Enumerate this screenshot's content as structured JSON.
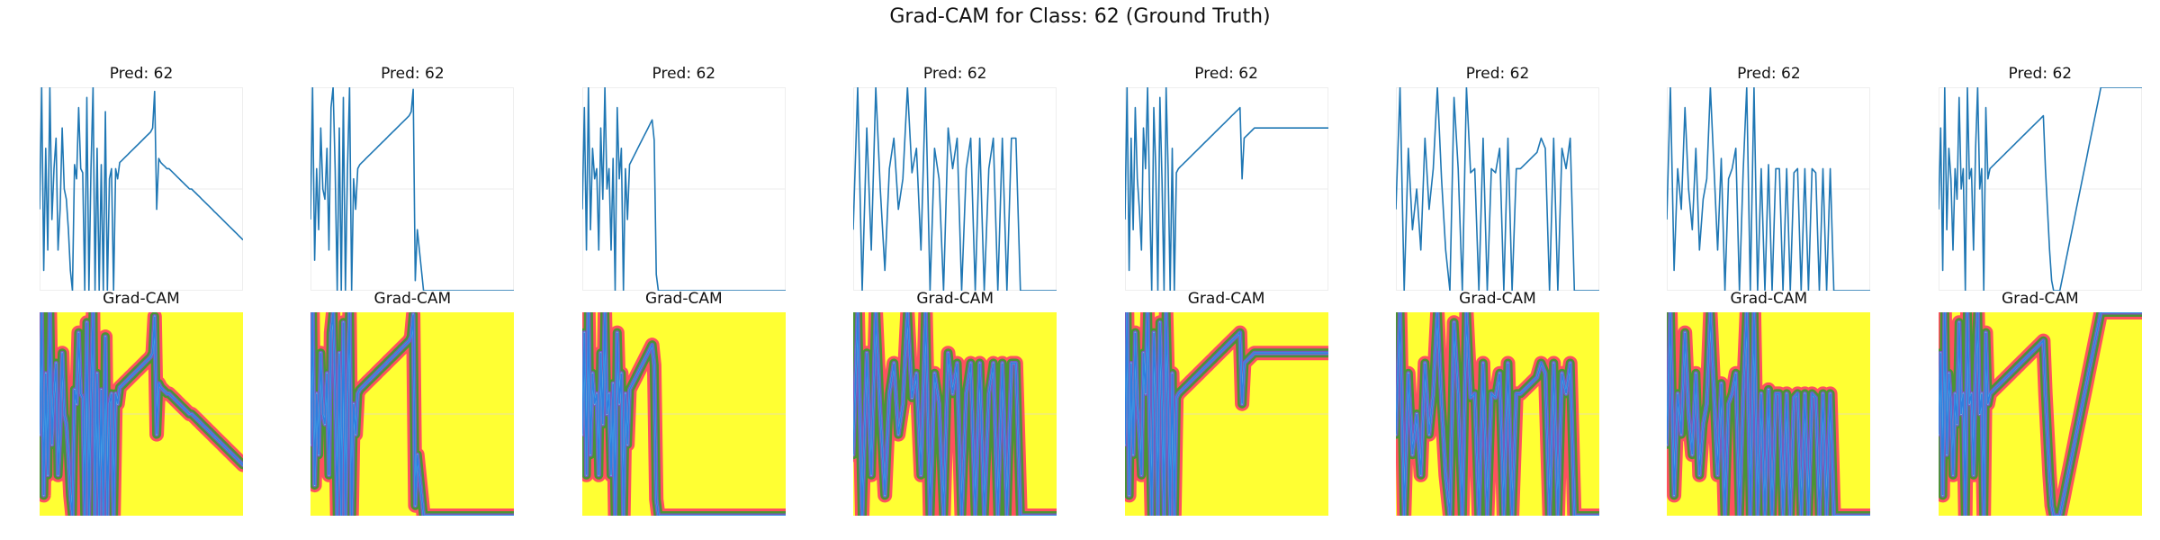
{
  "figure": {
    "title": "Grad-CAM for Class: 62 (Ground Truth)"
  },
  "colors": {
    "line": "#1f77b4",
    "heat_bg": "#ffff33",
    "heat_red": "#ff3366",
    "heat_green": "#2ca02c",
    "heat_blue": "#2d7fe0",
    "grid": "#eeeeee"
  },
  "chart_data": {
    "type": "line",
    "columns": [
      {
        "pred_title": "Pred: 62",
        "cam_title": "Grad-CAM",
        "x": [
          0,
          1,
          2,
          3,
          4,
          5,
          6,
          7,
          8,
          9,
          10,
          11,
          12,
          13,
          14,
          15,
          16,
          17,
          18,
          19,
          20,
          21,
          22,
          23,
          24,
          25,
          26,
          27,
          28,
          29,
          30,
          31,
          32,
          33,
          34,
          35,
          36,
          37,
          38,
          39,
          40,
          41,
          42,
          43,
          44,
          45,
          46,
          47,
          48,
          49,
          50,
          51,
          52,
          53,
          54,
          55,
          56,
          57,
          58,
          59,
          60,
          61,
          62,
          63,
          64,
          65,
          66,
          67,
          68,
          69,
          70,
          71,
          72,
          73,
          74,
          75,
          76,
          77,
          78,
          79,
          80,
          81,
          82,
          83,
          84,
          85,
          86,
          87,
          88,
          89,
          90,
          91,
          92,
          93,
          94,
          95,
          96,
          97,
          98,
          99
        ],
        "y": [
          0.4,
          1,
          0.1,
          0.7,
          0.2,
          1,
          0.35,
          0.6,
          0.75,
          0.2,
          0.4,
          0.8,
          0.5,
          0.45,
          0.3,
          0.1,
          0,
          0.62,
          0.55,
          0.9,
          0.6,
          0.58,
          0,
          0.95,
          0,
          0.6,
          1,
          0,
          0.7,
          0,
          0.62,
          0,
          0.88,
          0,
          0.55,
          0.6,
          0,
          0.6,
          0.55,
          0.63,
          0.64,
          0.65,
          0.66,
          0.67,
          0.68,
          0.69,
          0.7,
          0.71,
          0.72,
          0.73,
          0.74,
          0.75,
          0.76,
          0.77,
          0.78,
          0.8,
          0.98,
          0.4,
          0.65,
          0.63,
          0.62,
          0.61,
          0.6,
          0.6,
          0.59,
          0.58,
          0.57,
          0.56,
          0.55,
          0.54,
          0.53,
          0.52,
          0.51,
          0.5,
          0.5,
          0.49,
          0.48,
          0.47,
          0.46,
          0.45,
          0.44,
          0.43,
          0.42,
          0.41,
          0.4,
          0.39,
          0.38,
          0.37,
          0.36,
          0.35,
          0.34,
          0.33,
          0.32,
          0.31,
          0.3,
          0.29,
          0.28,
          0.27,
          0.26,
          0.25
        ]
      },
      {
        "pred_title": "Pred: 62",
        "cam_title": "Grad-CAM",
        "x": [
          0,
          1,
          2,
          3,
          4,
          5,
          6,
          7,
          8,
          9,
          10,
          11,
          12,
          13,
          14,
          15,
          16,
          17,
          18,
          19,
          20,
          21,
          22,
          23,
          24,
          25,
          26,
          27,
          28,
          29,
          30,
          31,
          32,
          33,
          34,
          35,
          36,
          37,
          38,
          39,
          40,
          41,
          42,
          43,
          44,
          45,
          46,
          47,
          48,
          49,
          50,
          51,
          52,
          53,
          54,
          55,
          56,
          57,
          58,
          59,
          60,
          61,
          62,
          63,
          64,
          65,
          66,
          67,
          68,
          69,
          70,
          71,
          72,
          73,
          74,
          75,
          76,
          77,
          78,
          79,
          80,
          81,
          82,
          83,
          84,
          85,
          86,
          87,
          88,
          89,
          90,
          91,
          92,
          93,
          94,
          95,
          96,
          97,
          98,
          99
        ],
        "y": [
          0.35,
          1,
          0.15,
          0.6,
          0.3,
          0.8,
          0.5,
          0.45,
          0.7,
          0.2,
          0.9,
          1,
          0.6,
          0,
          0.8,
          0,
          0.95,
          0,
          0.6,
          1,
          0,
          0.55,
          0.4,
          0.6,
          0.62,
          0.63,
          0.64,
          0.65,
          0.66,
          0.67,
          0.68,
          0.69,
          0.7,
          0.71,
          0.72,
          0.73,
          0.74,
          0.75,
          0.76,
          0.77,
          0.78,
          0.79,
          0.8,
          0.81,
          0.82,
          0.83,
          0.84,
          0.85,
          0.86,
          0.88,
          0.99,
          0.05,
          0.3,
          0.2,
          0.1,
          0,
          0,
          0,
          0,
          0,
          0,
          0,
          0,
          0,
          0,
          0,
          0,
          0,
          0,
          0,
          0,
          0,
          0,
          0,
          0,
          0,
          0,
          0,
          0,
          0,
          0,
          0,
          0,
          0,
          0,
          0,
          0,
          0,
          0,
          0,
          0,
          0,
          0,
          0,
          0,
          0,
          0,
          0,
          0,
          0
        ]
      },
      {
        "pred_title": "Pred: 62",
        "cam_title": "Grad-CAM",
        "x": [
          0,
          1,
          2,
          3,
          4,
          5,
          6,
          7,
          8,
          9,
          10,
          11,
          12,
          13,
          14,
          15,
          16,
          17,
          18,
          19,
          20,
          21,
          22,
          23,
          24,
          25,
          26,
          27,
          28,
          29,
          30,
          31,
          32,
          33,
          34,
          35,
          36,
          37,
          38,
          39,
          40,
          41,
          42,
          43,
          44,
          45,
          46,
          47,
          48,
          49,
          50,
          51,
          52,
          53,
          54,
          55,
          56,
          57,
          58,
          59,
          60,
          61,
          62,
          63,
          64,
          65,
          66,
          67,
          68,
          69,
          70,
          71,
          72,
          73,
          74,
          75,
          76,
          77,
          78,
          79,
          80,
          81,
          82,
          83,
          84,
          85,
          86,
          87,
          88,
          89,
          90,
          91,
          92,
          93,
          94,
          95,
          96,
          97,
          98,
          99
        ],
        "y": [
          0.4,
          0.9,
          0.2,
          1,
          0.3,
          0.7,
          0.55,
          0.6,
          0.2,
          0.8,
          0.45,
          1,
          0.5,
          0.6,
          0.2,
          0.65,
          0,
          0.9,
          0.55,
          0.7,
          0,
          0.6,
          0.35,
          0.62,
          0.64,
          0.66,
          0.68,
          0.7,
          0.72,
          0.74,
          0.76,
          0.78,
          0.8,
          0.82,
          0.84,
          0.74,
          0.08,
          0,
          0,
          0,
          0,
          0,
          0,
          0,
          0,
          0,
          0,
          0,
          0,
          0,
          0,
          0,
          0,
          0,
          0,
          0,
          0,
          0,
          0,
          0,
          0,
          0,
          0,
          0,
          0,
          0,
          0,
          0,
          0,
          0,
          0,
          0,
          0,
          0,
          0,
          0,
          0,
          0,
          0,
          0,
          0,
          0,
          0,
          0,
          0,
          0,
          0,
          0,
          0,
          0,
          0,
          0,
          0,
          0,
          0,
          0,
          0,
          0,
          0,
          0
        ]
      },
      {
        "pred_title": "Pred: 62",
        "cam_title": "Grad-CAM",
        "x": [
          0,
          1,
          2,
          3,
          4,
          5,
          6,
          7,
          8,
          9,
          10,
          11,
          12,
          13,
          14,
          15,
          16,
          17,
          18,
          19,
          20,
          21,
          22,
          23,
          24,
          25,
          26,
          27,
          28,
          29,
          30,
          31,
          32,
          33,
          34,
          35,
          36,
          37,
          38,
          39,
          40,
          41,
          42,
          43,
          44,
          45
        ],
        "y": [
          0.3,
          1,
          0,
          0.8,
          0.2,
          1,
          0.5,
          0.1,
          0.6,
          0.75,
          0.4,
          0.55,
          1,
          0.58,
          0.7,
          0.2,
          1,
          0,
          0.7,
          0.55,
          0,
          0.8,
          0.6,
          0.75,
          0,
          0.6,
          0.75,
          0,
          0.75,
          0,
          0.6,
          0.75,
          0,
          0.75,
          0,
          0.75,
          0.75,
          0,
          0,
          0,
          0,
          0,
          0,
          0,
          0,
          0
        ]
      },
      {
        "pred_title": "Pred: 62",
        "cam_title": "Grad-CAM",
        "x": [
          0,
          1,
          2,
          3,
          4,
          5,
          6,
          7,
          8,
          9,
          10,
          11,
          12,
          13,
          14,
          15,
          16,
          17,
          18,
          19,
          20,
          21,
          22,
          23,
          24,
          25,
          26,
          27,
          28,
          29,
          30,
          31,
          32,
          33,
          34,
          35,
          36,
          37,
          38,
          39,
          40,
          41,
          42,
          43,
          44,
          45,
          46,
          47,
          48,
          49,
          50,
          51,
          52,
          53,
          54,
          55,
          56,
          57,
          58,
          59,
          60,
          61,
          62,
          63,
          64,
          65,
          66,
          67,
          68,
          69,
          70,
          71,
          72,
          73,
          74,
          75,
          76,
          77,
          78,
          79,
          80,
          81,
          82,
          83,
          84,
          85,
          86,
          87,
          88,
          89,
          90,
          91,
          92,
          93,
          94,
          95,
          96,
          97,
          98,
          99
        ],
        "y": [
          0.35,
          1,
          0.1,
          0.75,
          0.3,
          0.9,
          0.55,
          0.4,
          0.2,
          0.8,
          0.6,
          1,
          0.45,
          0,
          0.9,
          0.6,
          0,
          0.95,
          0.55,
          0,
          1,
          0.6,
          0,
          0.7,
          0,
          0.58,
          0.6,
          0.61,
          0.62,
          0.63,
          0.64,
          0.65,
          0.66,
          0.67,
          0.68,
          0.69,
          0.7,
          0.71,
          0.72,
          0.73,
          0.74,
          0.75,
          0.76,
          0.77,
          0.78,
          0.79,
          0.8,
          0.81,
          0.82,
          0.83,
          0.84,
          0.85,
          0.86,
          0.87,
          0.88,
          0.89,
          0.9,
          0.55,
          0.75,
          0.76,
          0.77,
          0.78,
          0.79,
          0.8,
          0.8,
          0.8,
          0.8,
          0.8,
          0.8,
          0.8,
          0.8,
          0.8,
          0.8,
          0.8,
          0.8,
          0.8,
          0.8,
          0.8,
          0.8,
          0.8,
          0.8,
          0.8,
          0.8,
          0.8,
          0.8,
          0.8,
          0.8,
          0.8,
          0.8,
          0.8,
          0.8,
          0.8,
          0.8,
          0.8,
          0.8,
          0.8,
          0.8,
          0.8,
          0.8,
          0.8
        ]
      },
      {
        "pred_title": "Pred: 62",
        "cam_title": "Grad-CAM",
        "x": [
          0,
          1,
          2,
          3,
          4,
          5,
          6,
          7,
          8,
          9,
          10,
          11,
          12,
          13,
          14,
          15,
          16,
          17,
          18,
          19,
          20,
          21,
          22,
          23,
          24,
          25,
          26,
          27,
          28,
          29,
          30,
          31,
          32,
          33,
          34,
          35,
          36,
          37,
          38,
          39,
          40,
          41,
          42,
          43,
          44,
          45,
          46,
          47,
          48,
          49
        ],
        "y": [
          0.4,
          1,
          0,
          0.7,
          0.3,
          0.5,
          0.2,
          0.75,
          0.4,
          0.6,
          1,
          0.55,
          0.2,
          0,
          0.95,
          0.6,
          0,
          1,
          0.58,
          0.6,
          0,
          0.75,
          0,
          0.6,
          0.58,
          0.7,
          0,
          0.75,
          0,
          0.6,
          0.6,
          0.62,
          0.64,
          0.66,
          0.68,
          0.75,
          0.7,
          0,
          0.75,
          0,
          0.7,
          0.6,
          0.75,
          0,
          0,
          0,
          0,
          0,
          0,
          0
        ]
      },
      {
        "pred_title": "Pred: 62",
        "cam_title": "Grad-CAM",
        "x": [
          0,
          1,
          2,
          3,
          4,
          5,
          6,
          7,
          8,
          9,
          10,
          11,
          12,
          13,
          14,
          15,
          16,
          17,
          18,
          19,
          20,
          21,
          22,
          23,
          24,
          25,
          26,
          27,
          28,
          29,
          30,
          31,
          32,
          33,
          34,
          35,
          36,
          37,
          38,
          39,
          40,
          41,
          42,
          43,
          44,
          45,
          46,
          47,
          48,
          49,
          50,
          51,
          52,
          53,
          54,
          55,
          56
        ],
        "y": [
          0.35,
          1,
          0.1,
          0.6,
          0.4,
          0.9,
          0.5,
          0.3,
          0.7,
          0.2,
          0.45,
          0.55,
          1,
          0.6,
          0.2,
          0.65,
          0,
          0.55,
          0.6,
          0.7,
          0,
          0.58,
          1,
          0,
          1,
          0,
          0.6,
          0,
          0.62,
          0,
          0.6,
          0.6,
          0,
          0.6,
          0,
          0.58,
          0.6,
          0,
          0.6,
          0,
          0.6,
          0.58,
          0,
          0.6,
          0,
          0.6,
          0,
          0,
          0,
          0,
          0,
          0,
          0,
          0,
          0,
          0,
          0
        ]
      },
      {
        "pred_title": "Pred: 62",
        "cam_title": "Grad-CAM",
        "x": [
          0,
          1,
          2,
          3,
          4,
          5,
          6,
          7,
          8,
          9,
          10,
          11,
          12,
          13,
          14,
          15,
          16,
          17,
          18,
          19,
          20,
          21,
          22,
          23,
          24,
          25,
          26,
          27,
          28,
          29,
          30,
          31,
          32,
          33,
          34,
          35,
          36,
          37,
          38,
          39,
          40,
          41,
          42,
          43,
          44,
          45,
          46,
          47,
          48,
          49,
          50,
          51,
          52,
          53,
          54,
          55,
          56,
          57,
          58,
          59,
          60,
          61,
          62,
          63,
          64,
          65,
          66,
          67,
          68,
          69,
          70,
          71,
          72,
          73,
          74,
          75,
          76,
          77,
          78,
          79,
          80,
          81,
          82,
          83,
          84,
          85,
          86,
          87,
          88,
          89,
          90,
          91,
          92,
          93,
          94,
          95,
          96,
          97,
          98,
          99
        ],
        "y": [
          0.4,
          0.8,
          0.1,
          1,
          0.3,
          0.7,
          0.55,
          0.2,
          0.6,
          0.45,
          0.95,
          0.5,
          0.6,
          0,
          1,
          0.55,
          0.6,
          0.2,
          0.7,
          1,
          0.5,
          0.6,
          0,
          0.9,
          0.55,
          0.6,
          0.61,
          0.62,
          0.63,
          0.64,
          0.65,
          0.66,
          0.67,
          0.68,
          0.69,
          0.7,
          0.71,
          0.72,
          0.73,
          0.74,
          0.75,
          0.76,
          0.77,
          0.78,
          0.79,
          0.8,
          0.81,
          0.82,
          0.83,
          0.84,
          0.85,
          0.86,
          0.6,
          0.4,
          0.2,
          0.05,
          0,
          0,
          0,
          0,
          0.05,
          0.1,
          0.15,
          0.2,
          0.25,
          0.3,
          0.35,
          0.4,
          0.45,
          0.5,
          0.55,
          0.6,
          0.65,
          0.7,
          0.75,
          0.8,
          0.85,
          0.9,
          0.95,
          1,
          1,
          1,
          1,
          1,
          1,
          1,
          1,
          1,
          1,
          1,
          1,
          1,
          1,
          1,
          1,
          1,
          1,
          1,
          1,
          1
        ]
      }
    ]
  }
}
